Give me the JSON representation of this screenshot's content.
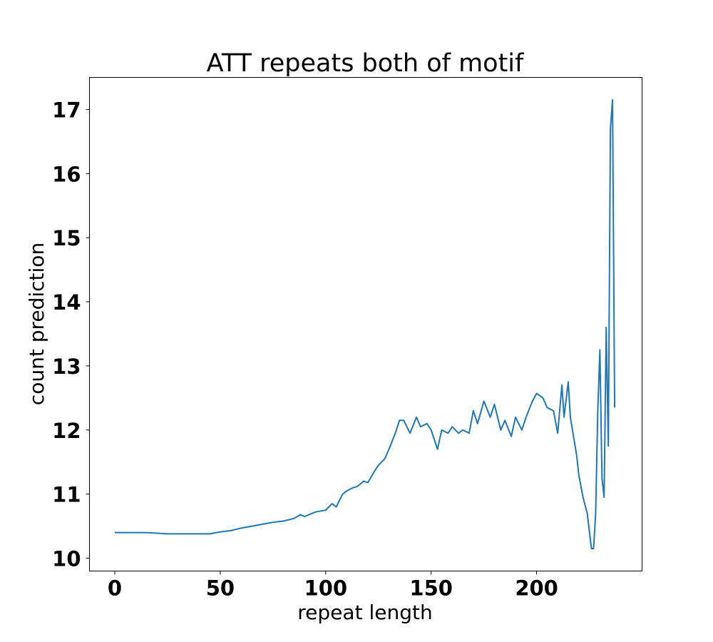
{
  "chart_data": {
    "type": "line",
    "title": "ATT repeats both of motif",
    "xlabel": "repeat length",
    "ylabel": "count prediction",
    "xlim": [
      -12,
      250
    ],
    "ylim": [
      9.8,
      17.5
    ],
    "xticks": [
      0,
      50,
      100,
      150,
      200
    ],
    "yticks": [
      10,
      11,
      12,
      13,
      14,
      15,
      16,
      17
    ],
    "grid": false,
    "series": [
      {
        "color": "#1f77b4",
        "x": [
          0,
          5,
          10,
          15,
          20,
          25,
          30,
          35,
          40,
          45,
          50,
          55,
          60,
          65,
          70,
          75,
          80,
          85,
          88,
          90,
          95,
          100,
          103,
          105,
          108,
          110,
          113,
          115,
          118,
          120,
          123,
          125,
          128,
          130,
          133,
          135,
          137,
          140,
          143,
          145,
          148,
          150,
          153,
          155,
          158,
          160,
          163,
          165,
          168,
          170,
          172,
          175,
          178,
          180,
          183,
          185,
          188,
          190,
          193,
          195,
          198,
          200,
          203,
          205,
          208,
          210,
          212,
          213,
          215,
          216,
          218,
          219,
          220,
          222,
          224,
          226,
          227,
          228,
          229,
          230,
          231,
          232,
          233,
          234,
          235,
          236,
          237
        ],
        "y": [
          10.4,
          10.4,
          10.4,
          10.4,
          10.39,
          10.38,
          10.38,
          10.38,
          10.38,
          10.38,
          10.41,
          10.43,
          10.47,
          10.5,
          10.53,
          10.56,
          10.58,
          10.62,
          10.68,
          10.65,
          10.72,
          10.75,
          10.85,
          10.8,
          11.0,
          11.05,
          11.1,
          11.12,
          11.2,
          11.18,
          11.35,
          11.45,
          11.55,
          11.7,
          11.95,
          12.15,
          12.15,
          11.95,
          12.2,
          12.05,
          12.1,
          12.0,
          11.7,
          12.0,
          11.95,
          12.05,
          11.95,
          12.0,
          11.95,
          12.3,
          12.1,
          12.45,
          12.2,
          12.4,
          12.0,
          12.15,
          11.9,
          12.2,
          12.0,
          12.2,
          12.45,
          12.57,
          12.5,
          12.35,
          12.3,
          11.95,
          12.7,
          12.2,
          12.75,
          12.2,
          11.8,
          11.6,
          11.3,
          10.95,
          10.7,
          10.15,
          10.15,
          10.7,
          12.3,
          13.25,
          11.25,
          10.95,
          13.6,
          11.75,
          16.7,
          17.15,
          12.35
        ]
      }
    ]
  }
}
